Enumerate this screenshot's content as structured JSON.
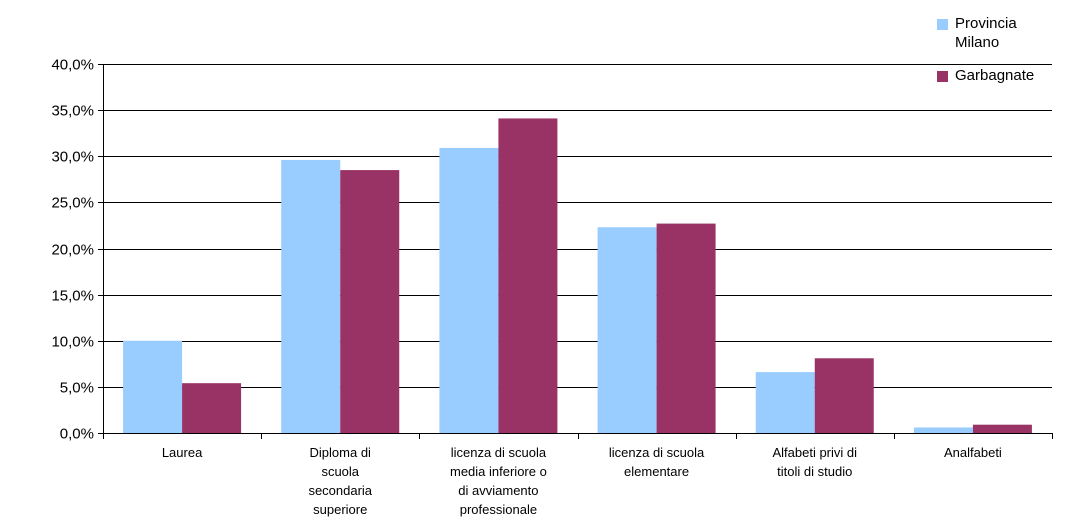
{
  "chart_data": {
    "type": "bar",
    "categories": [
      [
        "Laurea"
      ],
      [
        "Diploma di",
        "scuola",
        "secondaria",
        "superiore"
      ],
      [
        "licenza di scuola",
        "media inferiore o",
        "di avviamento",
        "professionale"
      ],
      [
        "licenza di scuola",
        "elementare"
      ],
      [
        "Alfabeti privi di",
        "titoli di studio"
      ],
      [
        "Analfabeti"
      ]
    ],
    "series": [
      {
        "name": "Provincia Milano",
        "legend_lines": [
          "Provincia",
          "Milano"
        ],
        "color": "#99ccff",
        "values": [
          10.0,
          29.6,
          30.9,
          22.3,
          6.6,
          0.6
        ]
      },
      {
        "name": "Garbagnate",
        "legend_lines": [
          "Garbagnate"
        ],
        "color": "#993366",
        "values": [
          5.4,
          28.5,
          34.1,
          22.7,
          8.1,
          0.9
        ]
      }
    ],
    "yticks": [
      "0,0%",
      "5,0%",
      "10,0%",
      "15,0%",
      "20,0%",
      "25,0%",
      "30,0%",
      "35,0%",
      "40,0%"
    ],
    "ylim": [
      0,
      40
    ],
    "ystep": 5,
    "grid": true,
    "legend_position": "top-right"
  }
}
